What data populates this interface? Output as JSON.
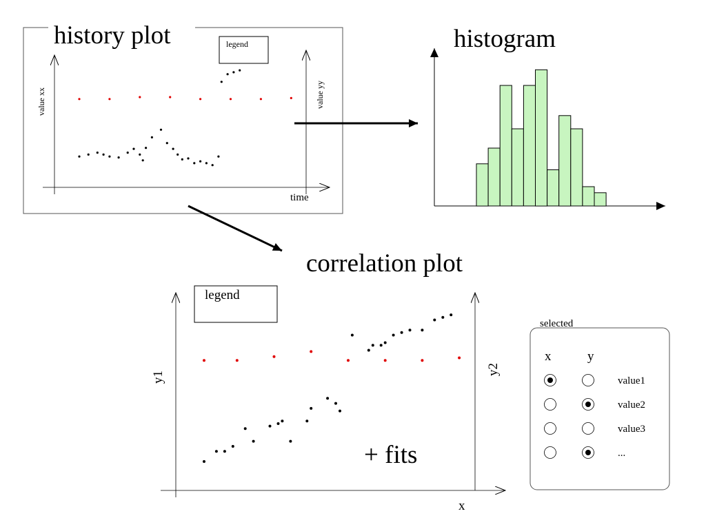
{
  "colors": {
    "ink": "#000000",
    "red_points": "#e00000",
    "bar_fill": "#c8f5c0",
    "frame": "#555555"
  },
  "history_plot": {
    "title": "history plot",
    "legend_label": "legend",
    "left_axis_label": "value xx",
    "right_axis_label": "value yy",
    "x_axis_label": "time"
  },
  "histogram": {
    "title": "histogram"
  },
  "correlation_plot": {
    "title": "correlation plot",
    "legend_label": "legend",
    "left_axis_label": "y1",
    "right_axis_label": "y2",
    "x_axis_label": "x",
    "note": "+ fits"
  },
  "selection_panel": {
    "title": "selected",
    "col_x": "x",
    "col_y": "y",
    "rows": [
      {
        "label": "value1",
        "x_selected": true,
        "y_selected": false
      },
      {
        "label": "value2",
        "x_selected": false,
        "y_selected": true
      },
      {
        "label": "value3",
        "x_selected": false,
        "y_selected": false
      },
      {
        "label": "...",
        "x_selected": false,
        "y_selected": true
      }
    ]
  },
  "chart_data": [
    {
      "type": "scatter",
      "title": "history plot",
      "xlabel": "time",
      "ylabel": "value xx",
      "ylabel_right": "value yy",
      "legend": "legend",
      "grid": false,
      "series": [
        {
          "color": "#e00000",
          "x": [
            1,
            2,
            3,
            4,
            5,
            6,
            7,
            8
          ],
          "y": [
            5.0,
            5.0,
            5.1,
            5.1,
            5.0,
            5.0,
            5.0,
            5.05
          ]
        },
        {
          "color": "#000000",
          "x": [
            1,
            1.3,
            1.6,
            1.8,
            2.0,
            2.3,
            2.6,
            2.8,
            3.0,
            3.1,
            3.2,
            3.4,
            3.7,
            3.9,
            4.1,
            4.25,
            4.4,
            4.6,
            4.8,
            5.0,
            5.2,
            5.4,
            5.6,
            5.7,
            5.9,
            6.1,
            6.3
          ],
          "y": [
            2.0,
            2.1,
            2.2,
            2.1,
            2.0,
            1.95,
            2.2,
            2.4,
            2.1,
            1.8,
            2.45,
            3.0,
            3.4,
            2.7,
            2.4,
            2.1,
            1.85,
            1.9,
            1.65,
            1.75,
            1.65,
            1.55,
            2.0,
            5.9,
            6.3,
            6.4,
            6.5
          ]
        }
      ]
    },
    {
      "type": "bar",
      "title": "histogram",
      "values": [
        35,
        48,
        100,
        64,
        100,
        113,
        30,
        75,
        64,
        16,
        11
      ],
      "grid": false
    },
    {
      "type": "scatter",
      "title": "correlation plot",
      "xlabel": "x",
      "ylabel": "y1",
      "ylabel_right": "y2",
      "legend": "legend",
      "grid": false,
      "series": [
        {
          "color": "#e00000",
          "x": [
            1.0,
            1.8,
            2.7,
            3.6,
            4.5,
            5.4,
            6.3,
            7.2
          ],
          "y": [
            5.0,
            5.0,
            5.15,
            5.35,
            5.0,
            5.0,
            5.0,
            5.1
          ]
        },
        {
          "color": "#000000",
          "x": [
            1.0,
            1.3,
            1.5,
            1.7,
            2.0,
            2.2,
            2.6,
            2.8,
            2.9,
            3.1,
            3.5,
            3.6,
            4.0,
            4.2,
            4.3,
            4.6,
            5.0,
            5.1,
            5.3,
            5.4,
            5.6,
            5.8,
            6.0,
            6.3,
            6.6,
            6.8,
            7.0
          ],
          "y": [
            1.0,
            1.4,
            1.4,
            1.6,
            2.3,
            1.8,
            2.4,
            2.5,
            2.6,
            1.8,
            2.6,
            3.1,
            3.5,
            3.3,
            3.0,
            6.0,
            5.4,
            5.6,
            5.6,
            5.7,
            6.0,
            6.1,
            6.2,
            6.2,
            6.6,
            6.7,
            6.8
          ]
        }
      ]
    }
  ]
}
